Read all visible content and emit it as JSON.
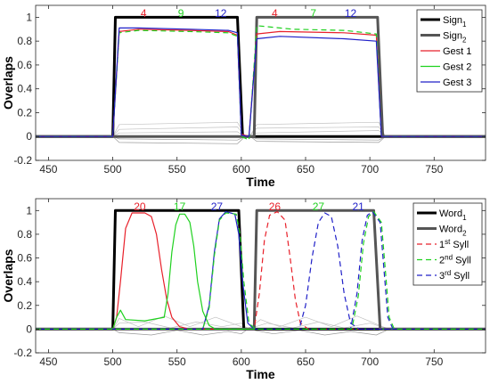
{
  "chart_data": [
    {
      "type": "line",
      "xlabel": "Time",
      "ylabel": "Overlaps",
      "xlim": [
        440,
        790
      ],
      "ylim": [
        -0.2,
        1.1
      ],
      "xticks": [
        450,
        500,
        550,
        600,
        650,
        700,
        750
      ],
      "yticks": [
        -0.2,
        0,
        0.2,
        0.4,
        0.6,
        0.8,
        1
      ],
      "ytick_labels": [
        "-0.2",
        "0",
        "0.2",
        "0.4",
        "0.6",
        "0.8",
        "1"
      ],
      "grid": false,
      "legend_position": "top-right",
      "legend": [
        {
          "label": "Sign",
          "sub": "1",
          "sup": "",
          "tail": "",
          "color": "#000000",
          "width": 3,
          "dash": ""
        },
        {
          "label": "Sign",
          "sub": "2",
          "sup": "",
          "tail": "",
          "color": "#555555",
          "width": 3,
          "dash": ""
        },
        {
          "label": "Gest 1",
          "sub": "",
          "sup": "",
          "tail": "",
          "color": "#e8202a",
          "width": 1.2,
          "dash": ""
        },
        {
          "label": "Gest 2",
          "sub": "",
          "sup": "",
          "tail": "",
          "color": "#1fd11f",
          "width": 1.2,
          "dash": ""
        },
        {
          "label": "Gest 3",
          "sub": "",
          "sup": "",
          "tail": "",
          "color": "#2020c8",
          "width": 1.2,
          "dash": ""
        }
      ],
      "annotations": [
        {
          "text": "4",
          "x": 524,
          "color": "#e8202a"
        },
        {
          "text": "9",
          "x": 553,
          "color": "#1fd11f"
        },
        {
          "text": "12",
          "x": 584,
          "color": "#2020c8"
        },
        {
          "text": "4",
          "x": 626,
          "color": "#e8202a"
        },
        {
          "text": "7",
          "x": 656,
          "color": "#1fd11f"
        },
        {
          "text": "12",
          "x": 685,
          "color": "#2020c8"
        }
      ],
      "series": [
        {
          "color": "#c0c0c0",
          "width": 0.7,
          "dash": "",
          "x": [
            440,
            500,
            505,
            597,
            603,
            607,
            612,
            707,
            712,
            790
          ],
          "y": [
            0,
            0,
            0.1,
            0.12,
            0,
            0.01,
            0.1,
            0.12,
            0,
            0
          ]
        },
        {
          "color": "#c0c0c0",
          "width": 0.7,
          "dash": "",
          "x": [
            440,
            500,
            505,
            597,
            603,
            607,
            612,
            707,
            712,
            790
          ],
          "y": [
            0,
            0,
            0.06,
            0.08,
            0,
            0.01,
            0.07,
            0.08,
            0,
            0
          ]
        },
        {
          "color": "#c0c0c0",
          "width": 0.7,
          "dash": "",
          "x": [
            440,
            500,
            505,
            597,
            603,
            607,
            612,
            707,
            712,
            790
          ],
          "y": [
            0,
            0,
            0.03,
            0.04,
            0,
            0,
            0.03,
            0.05,
            0,
            0
          ]
        },
        {
          "color": "#999999",
          "width": 0.7,
          "dash": "",
          "x": [
            440,
            500,
            505,
            597,
            603,
            607,
            612,
            707,
            712,
            790
          ],
          "y": [
            0,
            0,
            -0.02,
            -0.03,
            0,
            0,
            -0.02,
            -0.03,
            0,
            0
          ]
        },
        {
          "color": "#999999",
          "width": 0.7,
          "dash": "",
          "x": [
            440,
            500,
            505,
            597,
            603,
            607,
            612,
            707,
            712,
            790
          ],
          "y": [
            0,
            0,
            -0.05,
            -0.06,
            0,
            0,
            -0.04,
            -0.05,
            0,
            0
          ]
        },
        {
          "color": "#000000",
          "width": 3,
          "dash": "",
          "x": [
            440,
            500,
            502,
            597,
            601,
            790
          ],
          "y": [
            0,
            0,
            1,
            1,
            0,
            0
          ]
        },
        {
          "color": "#555555",
          "width": 3,
          "dash": "",
          "x": [
            440,
            610,
            612,
            706,
            710,
            790
          ],
          "y": [
            0,
            0,
            1,
            1,
            0,
            0
          ]
        },
        {
          "color": "#e8202a",
          "width": 1.2,
          "dash": "",
          "x": [
            440,
            500,
            505,
            520,
            560,
            590,
            597,
            600,
            606,
            612,
            630,
            680,
            705,
            709,
            790
          ],
          "y": [
            0,
            0,
            0.88,
            0.9,
            0.89,
            0.88,
            0.85,
            0.02,
            0,
            0.86,
            0.88,
            0.87,
            0.85,
            0,
            0
          ]
        },
        {
          "color": "#1fd11f",
          "width": 1.2,
          "dash": "6,4",
          "x": [
            440,
            500,
            505,
            520,
            560,
            590,
            597,
            600,
            606,
            612,
            640,
            680,
            705,
            709,
            790
          ],
          "y": [
            0,
            0,
            0.87,
            0.89,
            0.88,
            0.87,
            0.84,
            0,
            -0.03,
            0.93,
            0.9,
            0.89,
            0.86,
            0,
            0
          ]
        },
        {
          "color": "#2020c8",
          "width": 1.2,
          "dash": "",
          "x": [
            440,
            500,
            505,
            520,
            560,
            590,
            597,
            600,
            606,
            612,
            630,
            680,
            705,
            709,
            790
          ],
          "y": [
            0,
            0,
            0.91,
            0.91,
            0.9,
            0.89,
            0.87,
            0.01,
            0,
            0.82,
            0.84,
            0.82,
            0.8,
            0,
            0
          ]
        }
      ]
    },
    {
      "type": "line",
      "xlabel": "Time",
      "ylabel": "Overlaps",
      "xlim": [
        440,
        790
      ],
      "ylim": [
        -0.2,
        1.1
      ],
      "xticks": [
        450,
        500,
        550,
        600,
        650,
        700,
        750
      ],
      "yticks": [
        -0.2,
        0,
        0.2,
        0.4,
        0.6,
        0.8,
        1
      ],
      "ytick_labels": [
        "-0.2",
        "0",
        "0.2",
        "0.4",
        "0.6",
        "0.8",
        "1"
      ],
      "grid": false,
      "legend_position": "top-right",
      "legend": [
        {
          "label": "Word",
          "sub": "1",
          "sup": "",
          "tail": "",
          "color": "#000000",
          "width": 3,
          "dash": ""
        },
        {
          "label": "Word",
          "sub": "2",
          "sup": "",
          "tail": "",
          "color": "#555555",
          "width": 3,
          "dash": ""
        },
        {
          "label": "1",
          "sub": "",
          "sup": "st",
          "tail": " Syll",
          "color": "#e8202a",
          "width": 1.2,
          "dash": "6,4"
        },
        {
          "label": "2",
          "sub": "",
          "sup": "nd",
          "tail": " Syll",
          "color": "#1fd11f",
          "width": 1.2,
          "dash": "6,4"
        },
        {
          "label": "3",
          "sub": "",
          "sup": "rd",
          "tail": " Syll",
          "color": "#2020c8",
          "width": 1.2,
          "dash": "6,4"
        }
      ],
      "annotations": [
        {
          "text": "20",
          "x": 521,
          "color": "#e8202a"
        },
        {
          "text": "17",
          "x": 552,
          "color": "#1fd11f"
        },
        {
          "text": "27",
          "x": 581,
          "color": "#2020c8"
        },
        {
          "text": "26",
          "x": 626,
          "color": "#e8202a"
        },
        {
          "text": "27",
          "x": 660,
          "color": "#1fd11f"
        },
        {
          "text": "21",
          "x": 691,
          "color": "#2020c8"
        }
      ],
      "series": [
        {
          "color": "#c0c0c0",
          "width": 0.7,
          "dash": "",
          "x": [
            440,
            500,
            505,
            520,
            540,
            560,
            580,
            600,
            605,
            615,
            630,
            650,
            670,
            690,
            710,
            715,
            790
          ],
          "y": [
            0,
            0,
            0.09,
            0.02,
            0.11,
            0.02,
            0.1,
            0.02,
            0,
            0.08,
            0.02,
            0.1,
            0.02,
            0.11,
            0.02,
            0,
            0
          ]
        },
        {
          "color": "#c0c0c0",
          "width": 0.7,
          "dash": "",
          "x": [
            440,
            500,
            505,
            525,
            545,
            565,
            585,
            600,
            605,
            620,
            640,
            660,
            680,
            700,
            715,
            790
          ],
          "y": [
            0,
            0,
            0.05,
            0.06,
            0.01,
            0.06,
            0.02,
            0.05,
            0,
            0.05,
            0.01,
            0.06,
            0.01,
            0.05,
            0,
            0
          ]
        },
        {
          "color": "#999999",
          "width": 0.7,
          "dash": "",
          "x": [
            440,
            500,
            505,
            530,
            550,
            570,
            590,
            600,
            605,
            625,
            645,
            665,
            685,
            705,
            715,
            790
          ],
          "y": [
            0,
            0,
            -0.03,
            -0.05,
            -0.01,
            -0.05,
            -0.02,
            -0.04,
            0,
            -0.04,
            -0.01,
            -0.05,
            -0.02,
            -0.05,
            0,
            0
          ]
        },
        {
          "color": "#000000",
          "width": 3,
          "dash": "",
          "x": [
            440,
            500,
            502,
            598,
            602,
            790
          ],
          "y": [
            0,
            0,
            1,
            1,
            0,
            0
          ]
        },
        {
          "color": "#555555",
          "width": 3,
          "dash": "",
          "x": [
            440,
            610,
            612,
            703,
            708,
            790
          ],
          "y": [
            0,
            0,
            1,
            1,
            0,
            0
          ]
        },
        {
          "color": "#e8202a",
          "width": 1.2,
          "dash": "",
          "x": [
            440,
            500,
            503,
            506,
            510,
            515,
            525,
            530,
            534,
            538,
            542,
            546,
            552,
            560,
            790
          ],
          "y": [
            0,
            0,
            0.1,
            0.4,
            0.85,
            0.98,
            0.98,
            0.95,
            0.8,
            0.5,
            0.25,
            0.1,
            0.02,
            0,
            0
          ]
        },
        {
          "color": "#1fd11f",
          "width": 1.2,
          "dash": "",
          "x": [
            440,
            500,
            503,
            506,
            510,
            525,
            540,
            543,
            546,
            549,
            552,
            556,
            560,
            563,
            566,
            570,
            575,
            580,
            790
          ],
          "y": [
            0,
            0,
            0.1,
            0.16,
            0.08,
            0.07,
            0.1,
            0.3,
            0.65,
            0.88,
            0.97,
            0.97,
            0.9,
            0.7,
            0.4,
            0.15,
            0.03,
            0,
            0
          ]
        },
        {
          "color": "#2020c8",
          "width": 1.2,
          "dash": "",
          "x": [
            440,
            570,
            575,
            579,
            583,
            588,
            595,
            598,
            601,
            605,
            610,
            790
          ],
          "y": [
            0,
            0,
            0.2,
            0.65,
            0.93,
            0.99,
            0.97,
            0.8,
            0.4,
            0.05,
            0,
            0
          ]
        },
        {
          "color": "#1fd11f",
          "width": 1.2,
          "dash": "6,4",
          "x": [
            440,
            570,
            575,
            579,
            583,
            588,
            596,
            599,
            602,
            606,
            611,
            790
          ],
          "y": [
            0,
            0,
            0.18,
            0.62,
            0.92,
            0.98,
            0.97,
            0.8,
            0.4,
            0.05,
            0,
            0
          ]
        },
        {
          "color": "#e8202a",
          "width": 1.2,
          "dash": "6,4",
          "x": [
            440,
            610,
            614,
            618,
            622,
            628,
            634,
            638,
            642,
            646,
            652,
            790
          ],
          "y": [
            0,
            0,
            0.3,
            0.75,
            0.96,
            0.99,
            0.92,
            0.6,
            0.25,
            0.05,
            0,
            0
          ]
        },
        {
          "color": "#2020c8",
          "width": 1.2,
          "dash": "6,4",
          "x": [
            440,
            645,
            650,
            655,
            660,
            665,
            670,
            675,
            680,
            685,
            692,
            790
          ],
          "y": [
            0,
            0,
            0.2,
            0.6,
            0.9,
            0.98,
            0.95,
            0.7,
            0.3,
            0.05,
            0,
            0
          ]
        },
        {
          "color": "#2020c8",
          "width": 1.2,
          "dash": "6,4",
          "x": [
            440,
            685,
            690,
            694,
            698,
            702,
            708,
            711,
            714,
            718,
            790
          ],
          "y": [
            0,
            0,
            0.3,
            0.75,
            0.96,
            0.99,
            0.9,
            0.5,
            0.1,
            0,
            0
          ]
        },
        {
          "color": "#1fd11f",
          "width": 1.2,
          "dash": "6,4",
          "x": [
            440,
            686,
            691,
            695,
            699,
            703,
            709,
            712,
            715,
            719,
            790
          ],
          "y": [
            0,
            0,
            0.28,
            0.72,
            0.95,
            0.99,
            0.9,
            0.5,
            0.1,
            0,
            0
          ]
        }
      ]
    }
  ]
}
